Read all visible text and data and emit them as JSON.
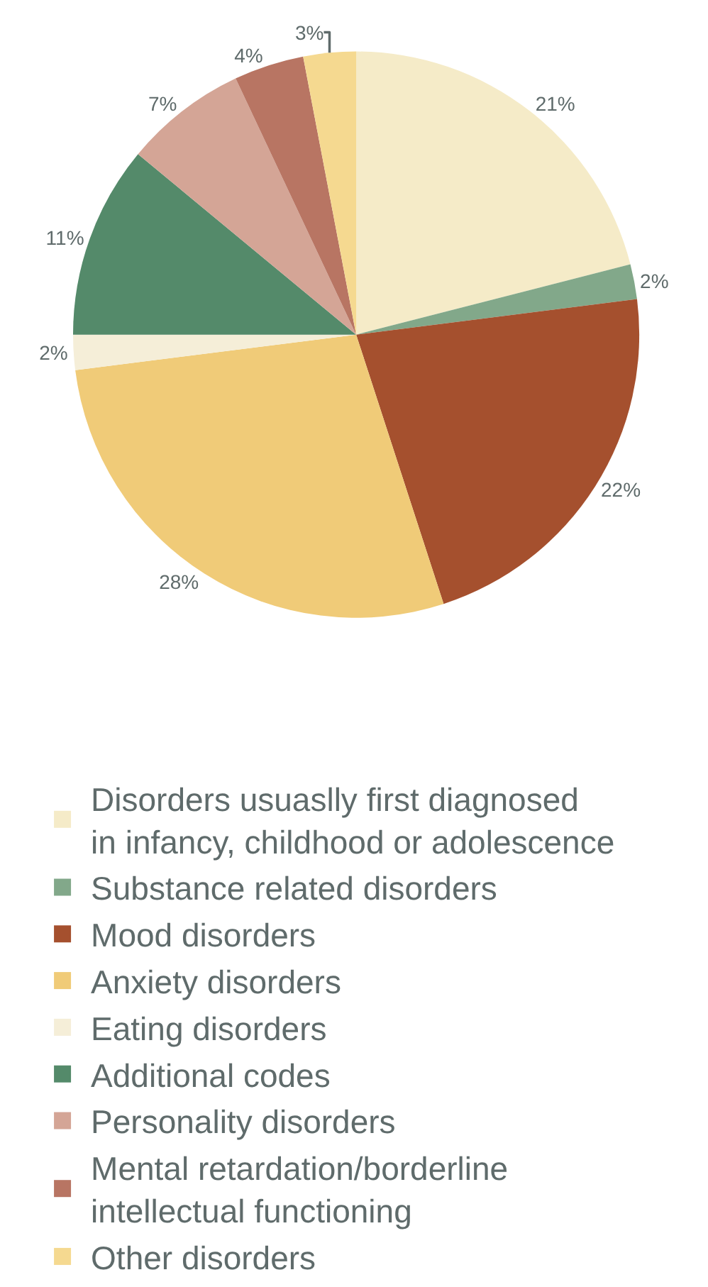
{
  "chart_data": {
    "type": "pie",
    "categories": [
      "Disorders usuaslly first diagnosed in infancy, childhood or adolescence",
      "Substance related disorders",
      "Mood disorders",
      "Anxiety disorders",
      "Eating disorders",
      "Additional codes",
      "Personality disorders",
      "Mental retardation/borderline intellectual functioning",
      "Other disorders"
    ],
    "values": [
      21,
      2,
      22,
      28,
      2,
      11,
      7,
      4,
      3
    ],
    "value_labels": [
      "21%",
      "2%",
      "22%",
      "28%",
      "2%",
      "11%",
      "7%",
      "4%",
      "3%"
    ],
    "colors": [
      "#f5ebc8",
      "#82a88a",
      "#a5502e",
      "#f0cb78",
      "#f5eed8",
      "#548a6a",
      "#d4a596",
      "#b87563",
      "#f5d990"
    ],
    "legend": "bottom"
  }
}
